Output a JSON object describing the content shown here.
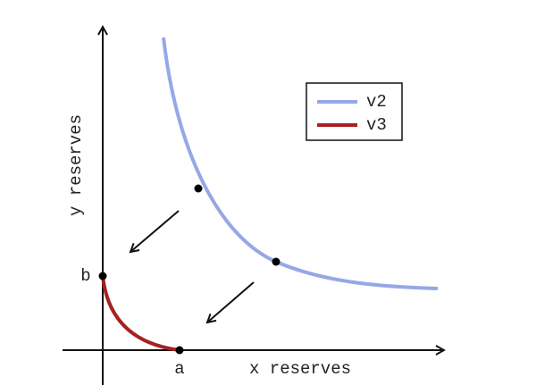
{
  "axes": {
    "x_label": "x reserves",
    "y_label": "y reserves"
  },
  "points": {
    "a": "a",
    "b": "b"
  },
  "legend": {
    "items": [
      {
        "label": "v2"
      },
      {
        "label": "v3"
      }
    ]
  }
}
